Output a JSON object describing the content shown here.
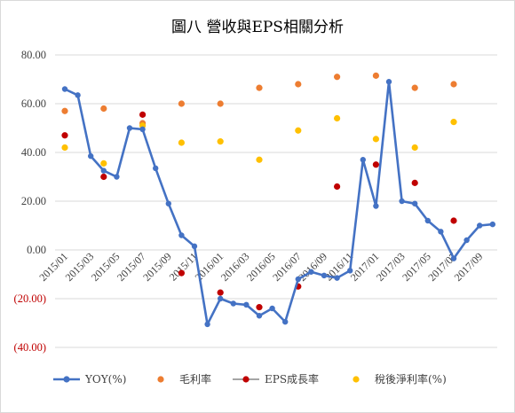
{
  "chart_data": {
    "type": "line",
    "title": "圖八 營收與EPS相關分析",
    "xlabel": "",
    "ylabel": "",
    "ylim": [
      -40,
      80
    ],
    "y_ticks": [
      {
        "value": 80,
        "label": "80.00"
      },
      {
        "value": 60,
        "label": "60.00"
      },
      {
        "value": 40,
        "label": "40.00"
      },
      {
        "value": 20,
        "label": "20.00"
      },
      {
        "value": 0,
        "label": "0.00"
      },
      {
        "value": -20,
        "label": "(20.00)"
      },
      {
        "value": -40,
        "label": "(40.00)"
      }
    ],
    "negative_label_color": "#c00000",
    "x_ticks": [
      "2015/01",
      "2015/03",
      "2015/05",
      "2015/07",
      "2015/09",
      "2015/11",
      "2016/01",
      "2016/03",
      "2016/05",
      "2016/07",
      "2016/09",
      "2016/11",
      "2017/01",
      "2017/03",
      "2017/05",
      "2017/07",
      "2017/09"
    ],
    "grid": true,
    "legend_position": "bottom",
    "series": [
      {
        "name": "YOY(%)",
        "style": "line",
        "color": "#4472c4",
        "x": [
          "2015/01",
          "2015/02",
          "2015/03",
          "2015/04",
          "2015/05",
          "2015/06",
          "2015/07",
          "2015/08",
          "2015/09",
          "2015/10",
          "2015/11",
          "2015/12",
          "2016/01",
          "2016/02",
          "2016/03",
          "2016/04",
          "2016/05",
          "2016/06",
          "2016/07",
          "2016/08",
          "2016/09",
          "2016/10",
          "2016/11",
          "2016/12",
          "2017/01",
          "2017/02",
          "2017/03",
          "2017/04",
          "2017/05",
          "2017/06",
          "2017/07",
          "2017/08",
          "2017/09",
          "2017/10"
        ],
        "values": [
          66,
          63.5,
          38.5,
          32.5,
          30,
          50,
          49.5,
          33.5,
          19,
          6,
          1.5,
          -30.5,
          -20,
          -22,
          -22.5,
          -27,
          -24,
          -29.5,
          -12,
          -9,
          -10.5,
          -11.5,
          -8.5,
          37,
          18,
          69,
          20,
          19,
          12,
          7.5,
          -3.5,
          4,
          10,
          10.5
        ]
      },
      {
        "name": "毛利率",
        "style": "marker",
        "color": "#ed7d31",
        "x": [
          "2015/01",
          "2015/04",
          "2015/07",
          "2015/10",
          "2016/01",
          "2016/04",
          "2016/07",
          "2016/10",
          "2017/01",
          "2017/04",
          "2017/07"
        ],
        "values": [
          57,
          58,
          52,
          60,
          60,
          66.5,
          68,
          71,
          71.5,
          66.5,
          68
        ]
      },
      {
        "name": "EPS成長率",
        "style": "marker",
        "color": "#c00000",
        "x": [
          "2015/01",
          "2015/04",
          "2015/07",
          "2015/10",
          "2016/01",
          "2016/04",
          "2016/07",
          "2016/10",
          "2017/01",
          "2017/04",
          "2017/07"
        ],
        "values": [
          47,
          30,
          55.5,
          -9.5,
          -17.5,
          -23.5,
          -15,
          26,
          35,
          27.5,
          12
        ]
      },
      {
        "name": "稅後淨利率(%)",
        "style": "marker",
        "color": "#ffc000",
        "x": [
          "2015/01",
          "2015/04",
          "2015/07",
          "2015/10",
          "2016/01",
          "2016/04",
          "2016/07",
          "2016/10",
          "2017/01",
          "2017/04",
          "2017/07"
        ],
        "values": [
          42,
          35.5,
          51,
          44,
          44.5,
          37,
          49,
          54,
          45.5,
          42,
          52.5
        ]
      }
    ],
    "legend": [
      {
        "label": "YOY(%)",
        "color": "#4472c4",
        "kind": "line"
      },
      {
        "label": "毛利率",
        "color": "#ed7d31",
        "kind": "marker"
      },
      {
        "label": "EPS成長率",
        "color": "#c00000",
        "kind": "marker-line",
        "line_color": "#a5a5a5"
      },
      {
        "label": "稅後淨利率(%)",
        "color": "#ffc000",
        "kind": "marker"
      }
    ]
  }
}
